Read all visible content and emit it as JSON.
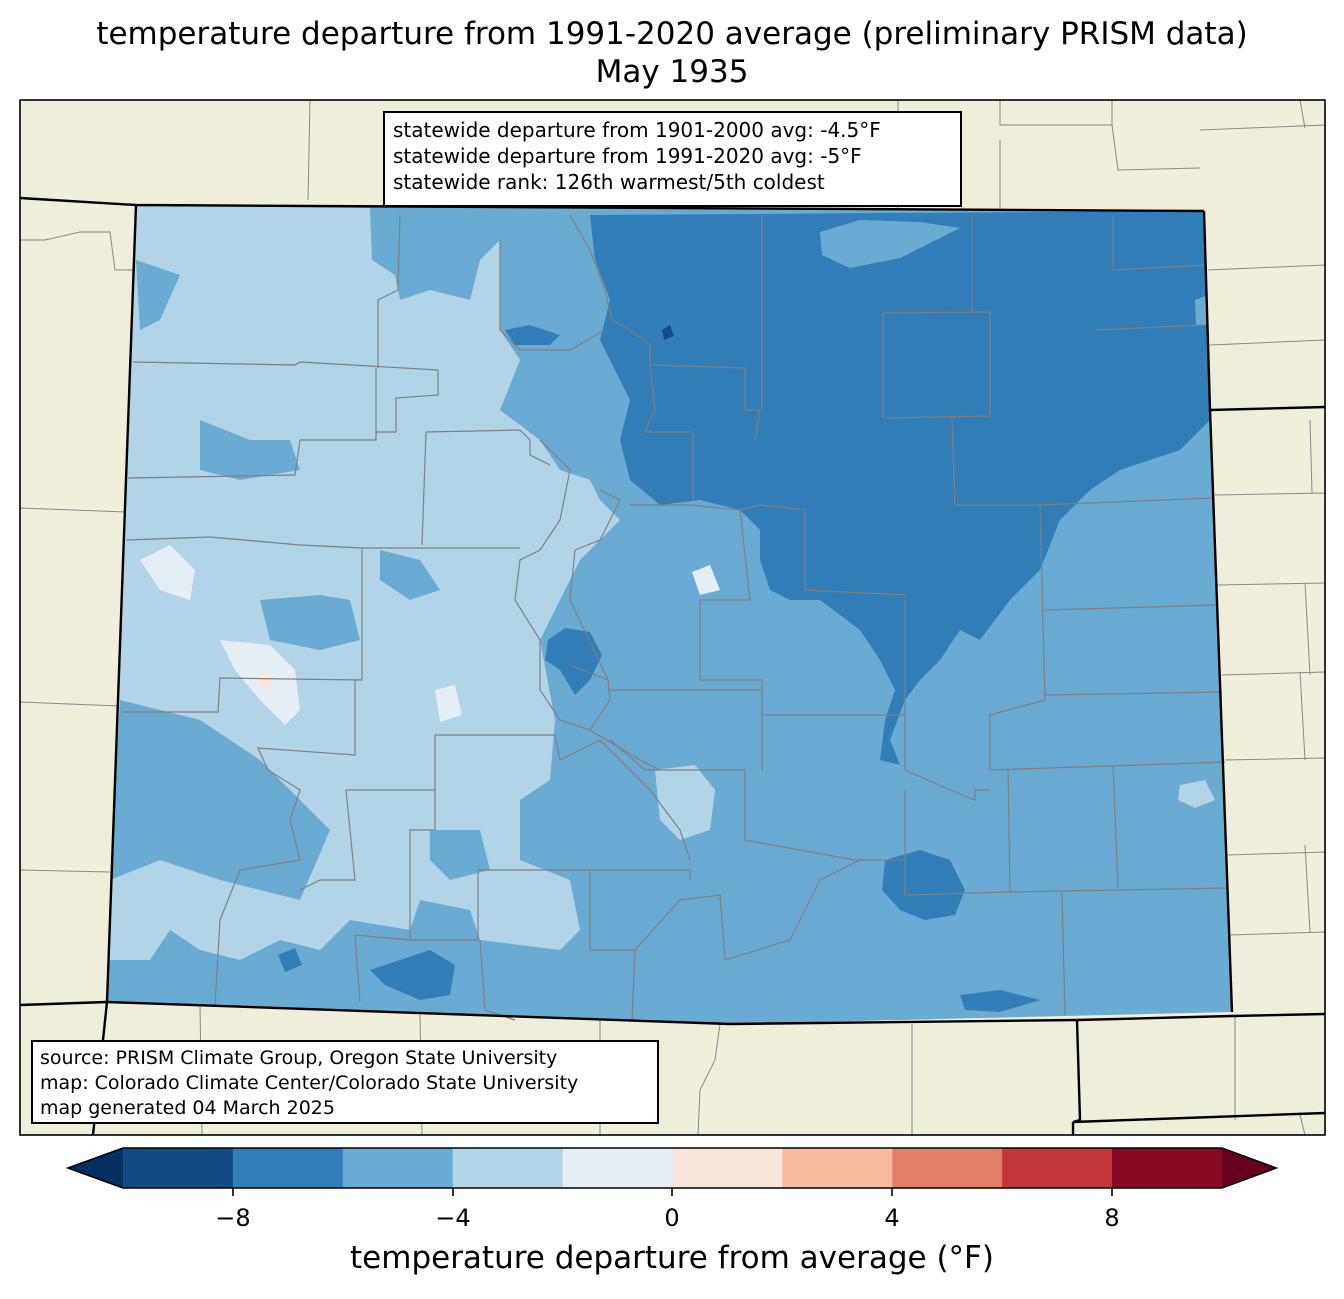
{
  "title": {
    "line1": "temperature departure from 1991-2020 average (preliminary PRISM data)",
    "line2": "May 1935"
  },
  "stats": {
    "line1": "statewide departure from 1901-2000 avg: -4.5°F",
    "line2": "statewide departure from 1991-2020 avg: -5°F",
    "line3": "statewide rank: 126th warmest/5th coldest"
  },
  "source": {
    "line1": "source: PRISM Climate Group, Oregon State University",
    "line2": "map: Colorado Climate Center/Colorado State University",
    "line3": "map generated 04 March 2025"
  },
  "colorbar": {
    "label": "temperature departure from average (°F)",
    "ticks": [
      "−8",
      "−4",
      "0",
      "4",
      "8"
    ],
    "bins": [
      {
        "range": "< -10",
        "color": "#053061"
      },
      {
        "range": "-10 to -8",
        "color": "#134b87"
      },
      {
        "range": "-8 to -6",
        "color": "#327eb8"
      },
      {
        "range": "-6 to -4",
        "color": "#69abd2"
      },
      {
        "range": "-4 to -2",
        "color": "#b1d5e7"
      },
      {
        "range": "-2 to 0",
        "color": "#e4eef4"
      },
      {
        "range": "0 to 2",
        "color": "#fae7dc"
      },
      {
        "range": "2 to 4",
        "color": "#f8bba0"
      },
      {
        "range": "4 to 6",
        "color": "#e17f67"
      },
      {
        "range": "6 to 8",
        "color": "#c13639"
      },
      {
        "range": "8 to 10",
        "color": "#870a24"
      },
      {
        "range": "> 10",
        "color": "#67001f"
      }
    ]
  },
  "map_colors": {
    "land": "#efeedb",
    "state_border": "#000000",
    "county_border": "#808080"
  }
}
